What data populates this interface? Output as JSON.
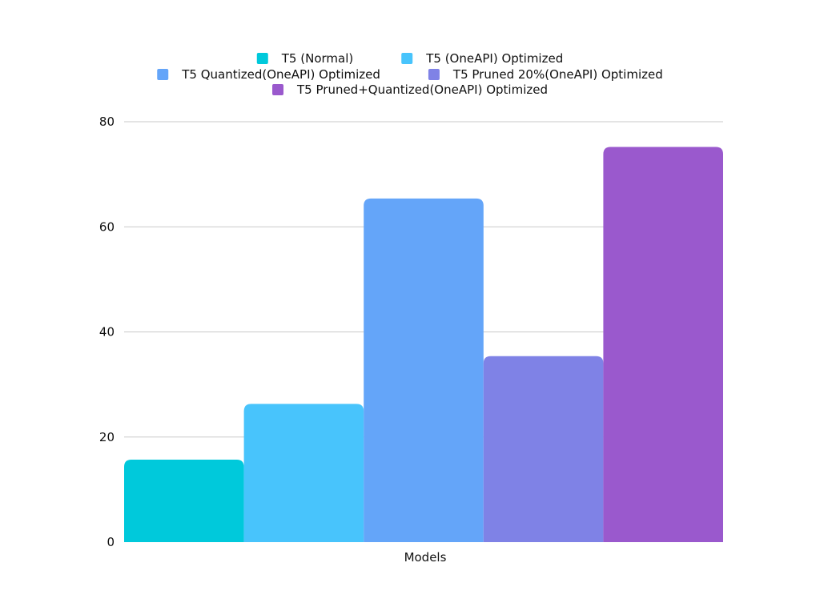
{
  "chart_data": {
    "type": "bar",
    "title": "",
    "xlabel": "Models",
    "ylabel": "",
    "ylim": [
      0,
      80
    ],
    "yticks": [
      0,
      20,
      40,
      60,
      80
    ],
    "grid": true,
    "legend_position": "top-center",
    "series": [
      {
        "name": "T5 (Normal)",
        "value": 15.7,
        "color": "#00C9DB"
      },
      {
        "name": "T5 (OneAPI) Optimized",
        "value": 26.3,
        "color": "#48C4FC"
      },
      {
        "name": "T5 Quantized(OneAPI) Optimized",
        "value": 65.4,
        "color": "#64A5F9"
      },
      {
        "name": "T5 Pruned 20%(OneAPI) Optimized",
        "value": 35.4,
        "color": "#7F82E6"
      },
      {
        "name": "T5 Pruned+Quantized(OneAPI) Optimized",
        "value": 75.2,
        "color": "#9A59CD"
      }
    ]
  }
}
